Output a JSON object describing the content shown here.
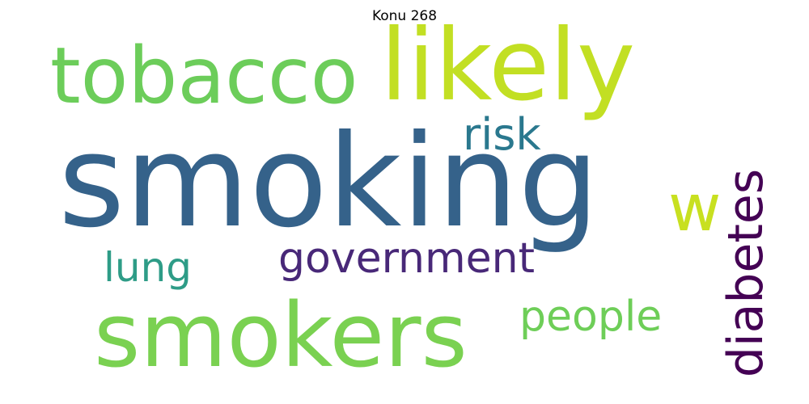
{
  "title": "Konu 268",
  "words": [
    {
      "text": "smoking",
      "color": "#35628a",
      "weight": 1.0,
      "orientation": "horizontal"
    },
    {
      "text": "smokers",
      "color": "#7ad151",
      "weight": 0.72,
      "orientation": "horizontal"
    },
    {
      "text": "likely",
      "color": "#c2df23",
      "weight": 0.68,
      "orientation": "horizontal"
    },
    {
      "text": "tobacco",
      "color": "#6ccd5a",
      "weight": 0.6,
      "orientation": "horizontal"
    },
    {
      "text": "government",
      "color": "#482878",
      "weight": 0.33,
      "orientation": "horizontal"
    },
    {
      "text": "diabetes",
      "color": "#440154",
      "weight": 0.42,
      "orientation": "vertical"
    },
    {
      "text": "w",
      "color": "#c8e020",
      "weight": 0.46,
      "orientation": "horizontal"
    },
    {
      "text": "people",
      "color": "#6ece58",
      "weight": 0.33,
      "orientation": "horizontal"
    },
    {
      "text": "risk",
      "color": "#2a788e",
      "weight": 0.32,
      "orientation": "horizontal"
    },
    {
      "text": "lung",
      "color": "#2e9c87",
      "weight": 0.32,
      "orientation": "horizontal"
    }
  ]
}
